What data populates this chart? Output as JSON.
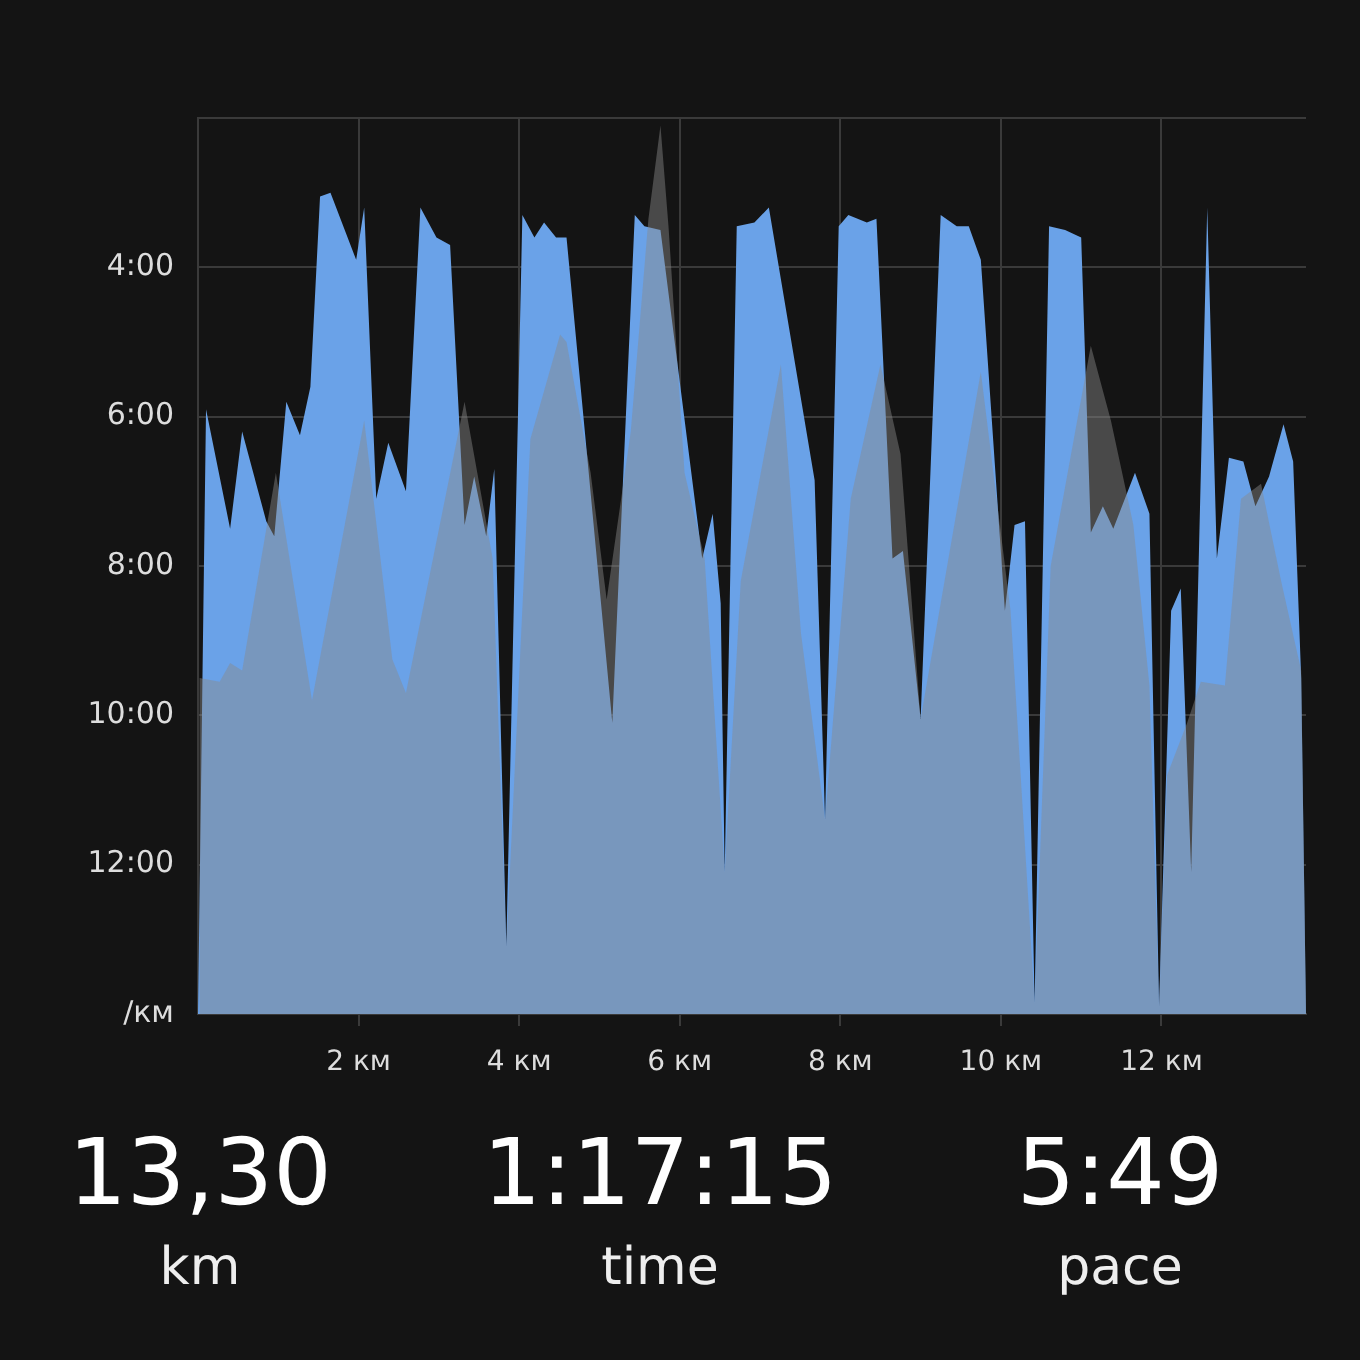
{
  "chart_data": {
    "type": "area",
    "series": [
      {
        "color": "#6aa2e8",
        "x": [
          0,
          0.1,
          0.4,
          0.55,
          0.85,
          0.95,
          1.1,
          1.27,
          1.4,
          1.52,
          1.65,
          1.97,
          2.07,
          2.22,
          2.37,
          2.59,
          2.77,
          2.97,
          3.14,
          3.32,
          3.44,
          3.59,
          3.69,
          3.84,
          4.04,
          4.19,
          4.31,
          4.46,
          4.59,
          5.16,
          5.44,
          5.56,
          5.76,
          6.28,
          6.41,
          6.51,
          6.56,
          6.71,
          6.93,
          7.11,
          7.68,
          7.81,
          7.98,
          8.1,
          8.33,
          8.45,
          8.65,
          8.78,
          9.0,
          9.25,
          9.45,
          9.6,
          9.75,
          10.05,
          10.17,
          10.3,
          10.42,
          10.6,
          10.8,
          11.0,
          11.12,
          11.27,
          11.4,
          11.67,
          11.85,
          11.97,
          12.12,
          12.24,
          12.37,
          12.57,
          12.69,
          12.84,
          13.02,
          13.17,
          13.34,
          13.52,
          13.64,
          13.74,
          13.8
        ],
        "values": [
          14,
          5.9,
          7.5,
          6.2,
          7.4,
          7.6,
          5.8,
          6.25,
          5.6,
          3.05,
          3.0,
          3.9,
          3.2,
          7.1,
          6.35,
          7.0,
          3.2,
          3.6,
          3.7,
          7.45,
          6.8,
          7.6,
          6.7,
          13.1,
          3.3,
          3.6,
          3.4,
          3.6,
          3.6,
          10.1,
          3.3,
          3.45,
          3.5,
          7.9,
          7.3,
          8.5,
          12.1,
          3.45,
          3.4,
          3.2,
          6.85,
          11.4,
          3.45,
          3.3,
          3.4,
          3.35,
          7.9,
          7.8,
          10.05,
          3.3,
          3.45,
          3.45,
          3.9,
          8.6,
          7.45,
          7.4,
          13.85,
          3.45,
          3.5,
          3.6,
          7.55,
          7.2,
          7.5,
          6.75,
          7.3,
          13.9,
          8.6,
          8.3,
          12.1,
          3.2,
          7.9,
          6.55,
          6.6,
          7.2,
          6.8,
          6.1,
          6.6,
          9.5,
          14
        ]
      },
      {
        "color": "#8a8a8a",
        "x": [
          0,
          0.02,
          0.27,
          0.4,
          0.55,
          0.97,
          1.42,
          2.07,
          2.42,
          2.59,
          3.32,
          3.67,
          3.84,
          4.14,
          4.51,
          4.59,
          4.89,
          5.09,
          5.39,
          5.61,
          5.76,
          5.86,
          6.06,
          6.31,
          6.56,
          6.76,
          7.26,
          7.51,
          7.81,
          8.13,
          8.5,
          8.75,
          9.0,
          9.75,
          10.12,
          10.42,
          10.62,
          11.12,
          11.37,
          11.65,
          11.85,
          11.97,
          12.07,
          12.32,
          12.49,
          12.79,
          12.99,
          13.24,
          13.49,
          13.74,
          13.8
        ],
        "values": [
          14,
          9.5,
          9.55,
          9.3,
          9.4,
          6.75,
          9.8,
          6.05,
          9.25,
          9.7,
          5.8,
          7.9,
          13.1,
          6.3,
          4.9,
          5.0,
          6.75,
          8.45,
          6.2,
          3.35,
          2.1,
          3.45,
          6.75,
          7.9,
          12.1,
          8.2,
          5.3,
          8.9,
          11.4,
          7.1,
          5.3,
          6.5,
          10.05,
          5.4,
          8.6,
          13.85,
          8.0,
          5.05,
          6.05,
          7.45,
          9.6,
          13.9,
          10.8,
          10.1,
          9.55,
          9.6,
          7.1,
          6.9,
          8.2,
          9.4,
          14
        ]
      }
    ],
    "xlim": [
      0,
      13.8
    ],
    "xticks": [
      {
        "value": 2,
        "label": "2 км"
      },
      {
        "value": 4,
        "label": "4 км"
      },
      {
        "value": 6,
        "label": "6 км"
      },
      {
        "value": 8,
        "label": "8 км"
      },
      {
        "value": 10,
        "label": "10 км"
      },
      {
        "value": 12,
        "label": "12 км"
      }
    ],
    "ylim": [
      14,
      2
    ],
    "yticks": [
      {
        "value": 2,
        "label": null
      },
      {
        "value": 4,
        "label": "4:00"
      },
      {
        "value": 6,
        "label": "6:00"
      },
      {
        "value": 8,
        "label": "8:00"
      },
      {
        "value": 10,
        "label": "10:00"
      },
      {
        "value": 12,
        "label": "12:00"
      },
      {
        "value": 14,
        "label": "/км"
      }
    ],
    "grid": true,
    "annotations": [
      "13,30",
      "km",
      "1:17:15",
      "time",
      "5:49",
      "pace"
    ]
  }
}
